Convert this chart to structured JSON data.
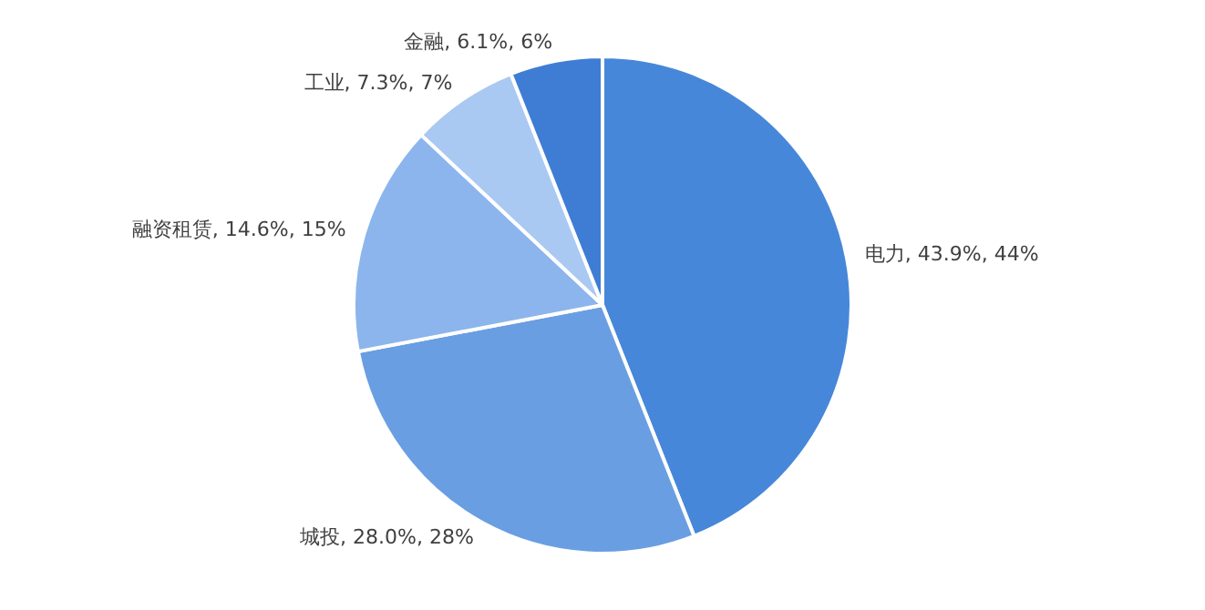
{
  "chart_data": {
    "type": "pie",
    "categories": [
      "电力",
      "城投",
      "融资租赁",
      "工业",
      "金融"
    ],
    "values": [
      44,
      28,
      15,
      7,
      6
    ],
    "value_labels": [
      "43.9%, 44%",
      "28.0%, 28%",
      "14.6%, 15%",
      "7.3%, 7%",
      "6.1%, 6%"
    ],
    "colors": [
      "#4787d9",
      "#6a9ee2",
      "#8bb5ec",
      "#a9c9f2",
      "#3f7dd5"
    ],
    "legend": false
  }
}
